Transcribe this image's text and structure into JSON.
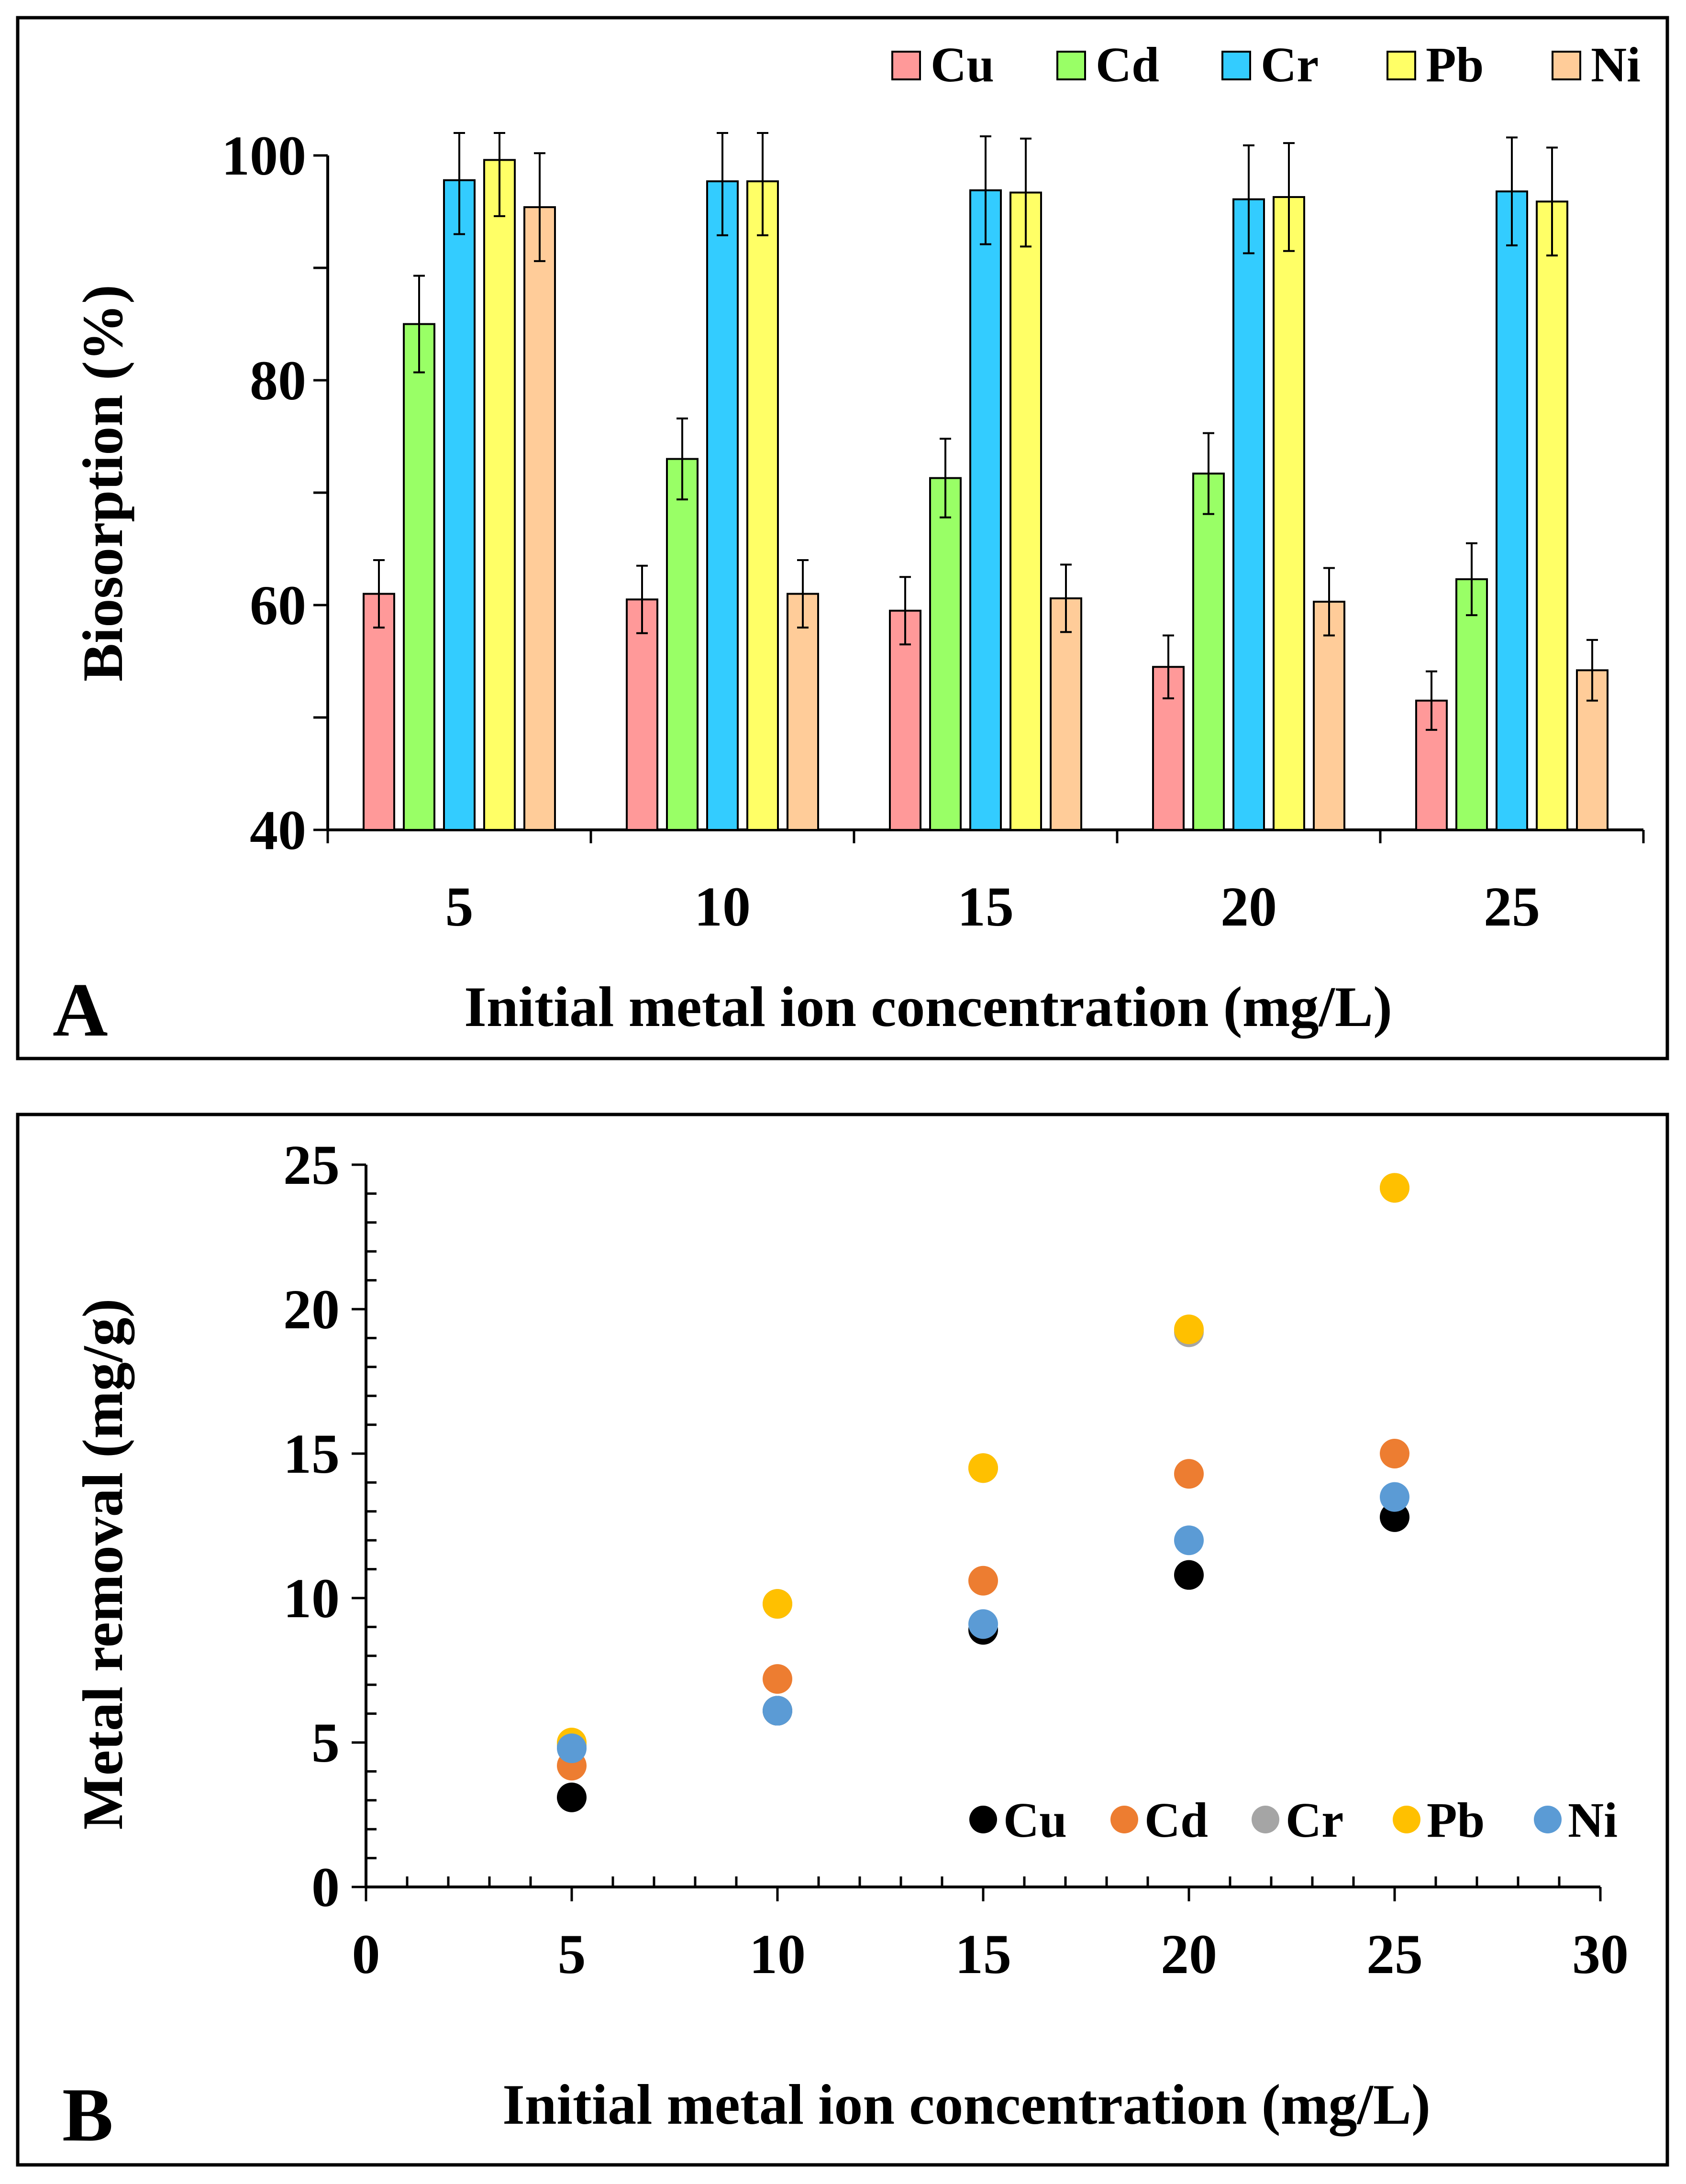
{
  "chart_data": [
    {
      "panel": "A",
      "type": "bar",
      "title": "",
      "xlabel": "Initial metal ion concentration (mg/L)",
      "ylabel": "Biosorption (%)",
      "ylim": [
        40,
        100
      ],
      "y_ticks": [
        "40",
        "60",
        "80",
        "100"
      ],
      "categories": [
        "5",
        "10",
        "15",
        "20",
        "25"
      ],
      "legend_position": "top-right",
      "series": [
        {
          "name": "Cu",
          "color": "#ff9999",
          "values": [
            61,
            60.5,
            59.5,
            54.5,
            51.5
          ],
          "errors": [
            3,
            3,
            3,
            2.8,
            2.6
          ]
        },
        {
          "name": "Cd",
          "color": "#99ff66",
          "values": [
            85,
            73,
            71.3,
            71.7,
            62.3
          ],
          "errors": [
            4.3,
            3.6,
            3.5,
            3.6,
            3.2
          ]
        },
        {
          "name": "Cr",
          "color": "#33ccff",
          "values": [
            97.8,
            97.7,
            96.9,
            96.1,
            96.8
          ],
          "errors": [
            4.8,
            4.8,
            4.8,
            4.8,
            4.8
          ]
        },
        {
          "name": "Pb",
          "color": "#ffff66",
          "values": [
            99.6,
            97.7,
            96.7,
            96.3,
            95.9
          ],
          "errors": [
            5,
            4.8,
            4.8,
            4.8,
            4.8
          ]
        },
        {
          "name": "Ni",
          "color": "#ffcc99",
          "values": [
            95.4,
            61,
            60.6,
            60.3,
            54.2
          ],
          "errors": [
            4.8,
            3,
            3,
            3,
            2.7
          ]
        }
      ],
      "panel_label": "A"
    },
    {
      "panel": "B",
      "type": "scatter",
      "title": "",
      "xlabel": "Initial metal ion concentration (mg/L)",
      "ylabel": "Metal removal (mg/g)",
      "xlim": [
        0,
        30
      ],
      "ylim": [
        0,
        25
      ],
      "x_ticks": [
        "0",
        "5",
        "10",
        "15",
        "20",
        "25",
        "30"
      ],
      "y_ticks": [
        "0",
        "5",
        "10",
        "15",
        "20",
        "25"
      ],
      "legend_position": "bottom-right",
      "series": [
        {
          "name": "Cu",
          "color": "#000000",
          "x": [
            5,
            10,
            15,
            20,
            25
          ],
          "y": [
            3.1,
            6.1,
            8.9,
            10.8,
            12.8
          ]
        },
        {
          "name": "Cd",
          "color": "#ed7d31",
          "x": [
            5,
            10,
            15,
            20,
            25
          ],
          "y": [
            4.2,
            7.2,
            10.6,
            14.3,
            15
          ]
        },
        {
          "name": "Cr",
          "color": "#a5a5a5",
          "x": [
            5,
            10,
            15,
            20,
            25
          ],
          "y": [
            4.9,
            9.8,
            14.5,
            19.2,
            24.2
          ]
        },
        {
          "name": "Pb",
          "color": "#ffc000",
          "x": [
            5,
            10,
            15,
            20,
            25
          ],
          "y": [
            5,
            9.8,
            14.5,
            19.3,
            24.2
          ]
        },
        {
          "name": "Ni",
          "color": "#5b9bd5",
          "x": [
            5,
            10,
            15,
            20,
            25
          ],
          "y": [
            4.8,
            6.1,
            9.1,
            12,
            13.5
          ]
        }
      ],
      "panel_label": "B"
    }
  ]
}
